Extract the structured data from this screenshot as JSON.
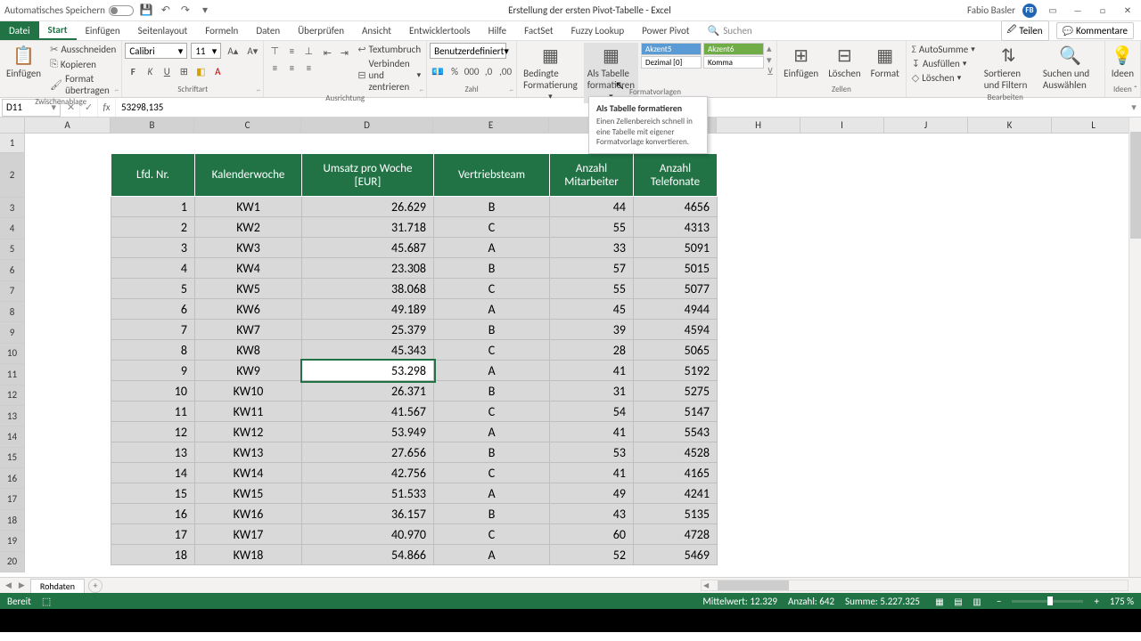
{
  "titlebar": {
    "autosave": "Automatisches Speichern",
    "title": "Erstellung der ersten Pivot-Tabelle - Excel",
    "user": "Fabio Basler",
    "initials": "FB"
  },
  "tabs": {
    "file": "Datei",
    "items": [
      "Start",
      "Einfügen",
      "Seitenlayout",
      "Formeln",
      "Daten",
      "Überprüfen",
      "Ansicht",
      "Entwicklertools",
      "Hilfe",
      "FactSet",
      "Fuzzy Lookup",
      "Power Pivot"
    ],
    "search": "Suchen",
    "share": "Teilen",
    "comments": "Kommentare"
  },
  "ribbon": {
    "clipboard": {
      "paste": "Einfügen",
      "cut": "Ausschneiden",
      "copy": "Kopieren",
      "format": "Format übertragen",
      "label": "Zwischenablage"
    },
    "font": {
      "name": "Calibri",
      "size": "11",
      "label": "Schriftart"
    },
    "align": {
      "wrap": "Textumbruch",
      "merge": "Verbinden und zentrieren",
      "label": "Ausrichtung"
    },
    "number": {
      "format": "Benutzerdefiniert",
      "label": "Zahl"
    },
    "styles": {
      "cond": "Bedingte Formatierung",
      "astable": "Als Tabelle formatieren",
      "a5": "Akzent5",
      "a6": "Akzent6",
      "dec": "Dezimal [0]",
      "komma": "Komma",
      "label": "Formatvorlagen"
    },
    "cells": {
      "insert": "Einfügen",
      "delete": "Löschen",
      "format": "Format",
      "label": "Zellen"
    },
    "editing": {
      "sum": "AutoSumme",
      "fill": "Ausfüllen",
      "clear": "Löschen",
      "sort": "Sortieren und Filtern",
      "find": "Suchen und Auswählen",
      "label": "Bearbeiten"
    },
    "ideas": {
      "label": "Ideen"
    }
  },
  "tooltip": {
    "title": "Als Tabelle formatieren",
    "desc": "Einen Zellenbereich schnell in eine Tabelle mit eigener Formatvorlage konvertieren.",
    "label": "Formatvorlagen"
  },
  "namebox": "D11",
  "formula": "53298,135",
  "cols": [
    "A",
    "B",
    "C",
    "D",
    "E",
    "F",
    "G",
    "H",
    "I",
    "J",
    "K",
    "L"
  ],
  "colw": {
    "A": 96,
    "B": 94,
    "C": 120,
    "D": 148,
    "E": 130,
    "F": 94,
    "G": 94,
    "H": 94,
    "I": 94,
    "J": 94,
    "K": 94,
    "L": 94
  },
  "rows": [
    1,
    2,
    3,
    4,
    5,
    6,
    7,
    8,
    9,
    10,
    11,
    12,
    13,
    14,
    15,
    16,
    17,
    18,
    19,
    20
  ],
  "table": {
    "headers": [
      "Lfd. Nr.",
      "Kalenderwoche",
      "Umsatz pro Woche [EUR]",
      "Vertriebsteam",
      "Anzahl Mitarbeiter",
      "Anzahl Telefonate"
    ],
    "rows": [
      [
        "1",
        "KW1",
        "26.629",
        "B",
        "44",
        "4656"
      ],
      [
        "2",
        "KW2",
        "31.718",
        "C",
        "55",
        "4313"
      ],
      [
        "3",
        "KW3",
        "45.687",
        "A",
        "33",
        "5091"
      ],
      [
        "4",
        "KW4",
        "23.308",
        "B",
        "57",
        "5015"
      ],
      [
        "5",
        "KW5",
        "38.068",
        "C",
        "55",
        "5077"
      ],
      [
        "6",
        "KW6",
        "49.189",
        "A",
        "45",
        "4944"
      ],
      [
        "7",
        "KW7",
        "25.379",
        "B",
        "39",
        "4594"
      ],
      [
        "8",
        "KW8",
        "45.343",
        "C",
        "28",
        "5065"
      ],
      [
        "9",
        "KW9",
        "53.298",
        "A",
        "41",
        "5192"
      ],
      [
        "10",
        "KW10",
        "26.371",
        "B",
        "31",
        "5275"
      ],
      [
        "11",
        "KW11",
        "41.567",
        "C",
        "54",
        "5147"
      ],
      [
        "12",
        "KW12",
        "53.949",
        "A",
        "41",
        "5543"
      ],
      [
        "13",
        "KW13",
        "27.656",
        "B",
        "53",
        "4528"
      ],
      [
        "14",
        "KW14",
        "42.756",
        "C",
        "41",
        "4165"
      ],
      [
        "15",
        "KW15",
        "51.533",
        "A",
        "49",
        "4241"
      ],
      [
        "16",
        "KW16",
        "36.157",
        "B",
        "43",
        "5135"
      ],
      [
        "17",
        "KW17",
        "40.970",
        "C",
        "60",
        "4728"
      ],
      [
        "18",
        "KW18",
        "54.866",
        "A",
        "52",
        "5469"
      ]
    ],
    "align": [
      "r",
      "c",
      "r",
      "c",
      "r",
      "r"
    ],
    "header_bg": "#217346",
    "header_fg": "#ffffff",
    "cell_bg": "#d9d9d9",
    "cell_border": "#bfbfbf",
    "active": {
      "row": 8,
      "col": 2
    }
  },
  "sheet": {
    "name": "Rohdaten"
  },
  "status": {
    "ready": "Bereit",
    "avg_lbl": "Mittelwert:",
    "avg": "12.329",
    "count_lbl": "Anzahl:",
    "count": "642",
    "sum_lbl": "Summe:",
    "sum": "5.227.325",
    "zoom": "175 %"
  }
}
